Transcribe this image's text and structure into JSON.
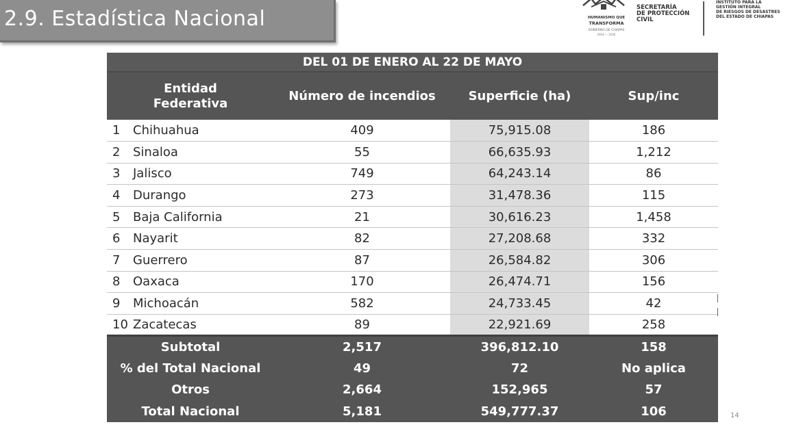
{
  "slide": {
    "title": "2.9. Estadística Nacional",
    "page_number": "14"
  },
  "logos": {
    "left_line1": "HUMANISMO QUE",
    "left_line2": "TRANSFORMA",
    "left_line3": "GOBIERNO DE CHIAPAS",
    "left_line4": "2024 — 2030",
    "secretaria": "SECRETARÍA\nDE PROTECCIÓN\nCIVIL",
    "instituto": "INSTITUTO PARA LA\nGESTIÓN INTEGRAL\nDE RIESGOS DE DESASTRES\nDEL ESTADO DE CHIAPAS"
  },
  "table": {
    "period": "DEL 01 DE ENERO AL 22 DE MAYO",
    "headers": {
      "entidad": "Entidad\nFederativa",
      "incendios": "Número de incendios",
      "superficie": "Superficie (ha)",
      "ratio": "Sup/inc"
    },
    "rows": [
      {
        "rank": "1",
        "entidad": "Chihuahua",
        "incendios": "409",
        "superficie": "75,915.08",
        "ratio": "186"
      },
      {
        "rank": "2",
        "entidad": "Sinaloa",
        "incendios": "55",
        "superficie": "66,635.93",
        "ratio": "1,212"
      },
      {
        "rank": "3",
        "entidad": "Jalisco",
        "incendios": "749",
        "superficie": "64,243.14",
        "ratio": "86"
      },
      {
        "rank": "4",
        "entidad": "Durango",
        "incendios": "273",
        "superficie": "31,478.36",
        "ratio": "115"
      },
      {
        "rank": "5",
        "entidad": "Baja California",
        "incendios": "21",
        "superficie": "30,616.23",
        "ratio": "1,458"
      },
      {
        "rank": "6",
        "entidad": "Nayarit",
        "incendios": "82",
        "superficie": "27,208.68",
        "ratio": "332"
      },
      {
        "rank": "7",
        "entidad": "Guerrero",
        "incendios": "87",
        "superficie": "26,584.82",
        "ratio": "306"
      },
      {
        "rank": "8",
        "entidad": "Oaxaca",
        "incendios": "170",
        "superficie": "26,474.71",
        "ratio": "156"
      },
      {
        "rank": "9",
        "entidad": "Michoacán",
        "incendios": "582",
        "superficie": "24,733.45",
        "ratio": "42"
      },
      {
        "rank": "10",
        "entidad": "Zacatecas",
        "incendios": "89",
        "superficie": "22,921.69",
        "ratio": "258"
      }
    ],
    "summary": [
      {
        "label": "Subtotal",
        "incendios": "2,517",
        "superficie": "396,812.10",
        "ratio": "158"
      },
      {
        "label": "% del Total Nacional",
        "incendios": "49",
        "superficie": "72",
        "ratio": "No aplica"
      },
      {
        "label": "Otros",
        "incendios": "2,664",
        "superficie": "152,965",
        "ratio": "57"
      },
      {
        "label": "Total Nacional",
        "incendios": "5,181",
        "superficie": "549,777.37",
        "ratio": "106"
      }
    ]
  }
}
